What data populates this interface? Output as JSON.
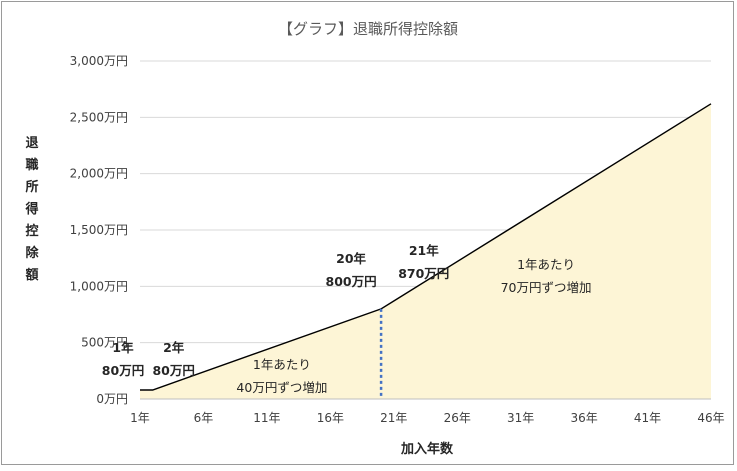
{
  "chart_data": {
    "type": "area",
    "title": "【グラフ】退職所得控除額",
    "xlabel": "加入年数",
    "ylabel": "退職所得控除額",
    "ylim": [
      0,
      3000
    ],
    "xlim": [
      1,
      46
    ],
    "grid": true,
    "y_ticks": [
      {
        "value": 0,
        "label": "0万円"
      },
      {
        "value": 500,
        "label": "500万円"
      },
      {
        "value": 1000,
        "label": "1,000万円"
      },
      {
        "value": 1500,
        "label": "1,500万円"
      },
      {
        "value": 2000,
        "label": "2,000万円"
      },
      {
        "value": 2500,
        "label": "2,500万円"
      },
      {
        "value": 3000,
        "label": "3,000万円"
      }
    ],
    "x_ticks": [
      {
        "value": 1,
        "label": "1年"
      },
      {
        "value": 6,
        "label": "6年"
      },
      {
        "value": 11,
        "label": "11年"
      },
      {
        "value": 16,
        "label": "16年"
      },
      {
        "value": 21,
        "label": "21年"
      },
      {
        "value": 26,
        "label": "26年"
      },
      {
        "value": 31,
        "label": "31年"
      },
      {
        "value": 36,
        "label": "36年"
      },
      {
        "value": 41,
        "label": "41年"
      },
      {
        "value": 46,
        "label": "46年"
      }
    ],
    "series": [
      {
        "x": [
          1,
          2,
          20,
          21,
          46
        ],
        "y": [
          80,
          80,
          800,
          870,
          2620
        ]
      }
    ],
    "threshold_line": {
      "x": 20,
      "y": 800
    },
    "colors": {
      "fill": "#fdf5d6",
      "line": "#000000",
      "grid": "#d9d9d9",
      "divider": "#4472c4"
    },
    "annotations": [
      {
        "x": 1,
        "y": 80,
        "lines": [
          "1年",
          "80万円"
        ],
        "bold": true
      },
      {
        "x": 2,
        "y": 80,
        "lines": [
          "2年",
          "80万円"
        ],
        "bold": true
      },
      {
        "x": 20,
        "y": 800,
        "lines": [
          "20年",
          "800万円"
        ],
        "bold": true
      },
      {
        "x": 21,
        "y": 870,
        "lines": [
          "21年",
          "870万円"
        ],
        "bold": true
      },
      {
        "x": 11,
        "y": 300,
        "lines": [
          "1年あたり",
          "40万円ずつ増加"
        ],
        "bold": false
      },
      {
        "x": 33,
        "y": 800,
        "lines": [
          "1年あたり",
          "70万円ずつ増加"
        ],
        "bold": false
      }
    ]
  }
}
